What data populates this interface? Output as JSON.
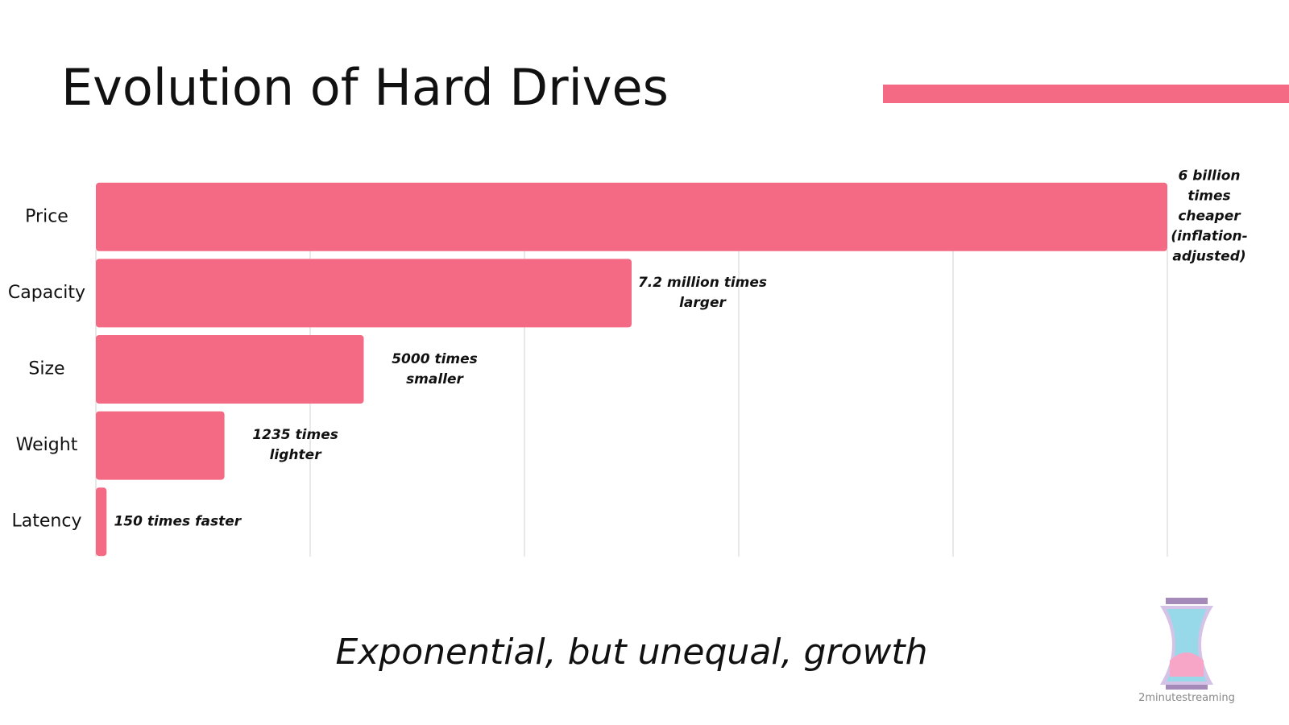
{
  "chart_data": {
    "type": "hbar",
    "title": "Evolution of Hard Drives",
    "subtitle": "Exponential, but unequal, growth",
    "brand": "2minutestreaming",
    "categories": [
      "Price",
      "Capacity",
      "Size",
      "Weight",
      "Latency"
    ],
    "values": [
      5.0,
      2.5,
      1.25,
      0.6,
      0.05
    ],
    "bar_notes": [
      "6 billion times cheaper (inflation-adjusted)",
      "7.2 million times larger",
      "5000 times smaller",
      "1235 times lighter",
      "150 times faster"
    ],
    "color": "#f46a84",
    "xlim": [
      0,
      5
    ],
    "xticks": [
      0,
      1,
      2,
      3,
      4,
      5
    ],
    "tick_labels": false,
    "grid": true
  }
}
